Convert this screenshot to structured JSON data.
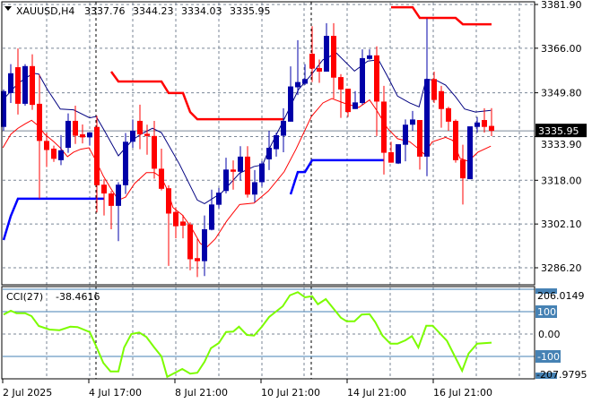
{
  "header": {
    "dropdown_icon": "triangle-down-icon",
    "symbol": "XAUUSD,H4",
    "open": "3337.76",
    "high": "3344.23",
    "low": "3334.03",
    "close": "3335.95"
  },
  "price_axis": {
    "labels": [
      "3381.90",
      "3366.00",
      "3349.80",
      "3333.90",
      "3318.00",
      "3302.10",
      "3286.20"
    ],
    "values": [
      3381.9,
      3366.0,
      3349.8,
      3333.9,
      3318.0,
      3302.1,
      3286.2
    ],
    "current_price_label": "3335.95",
    "current_price": 3335.95
  },
  "time_axis": {
    "labels": [
      "2 Jul 2025",
      "4 Jul 17:00",
      "8 Jul 21:00",
      "10 Jul 21:00",
      "14 Jul 21:00",
      "16 Jul 21:00"
    ],
    "label_candle_index": [
      0,
      12,
      24,
      36,
      48,
      60
    ]
  },
  "cci": {
    "title": "CCI(27)",
    "value": "-38.4616",
    "axis_max_label": "206.0149",
    "axis_min_label": "-207.9795",
    "level_labels": [
      "100",
      "0.00",
      "-100"
    ],
    "levels": [
      100,
      0,
      -100
    ],
    "points": [
      [
        0,
        87
      ],
      [
        1,
        104
      ],
      [
        1.8,
        93
      ],
      [
        3,
        93
      ],
      [
        3.9,
        80
      ],
      [
        4.9,
        36
      ],
      [
        6.4,
        20
      ],
      [
        7.8,
        17
      ],
      [
        9.3,
        33
      ],
      [
        10.3,
        31
      ],
      [
        12,
        9
      ],
      [
        12.8,
        -47
      ],
      [
        13.9,
        -129
      ],
      [
        14.9,
        -167
      ],
      [
        16,
        -167
      ],
      [
        16.8,
        -60
      ],
      [
        17.8,
        0
      ],
      [
        18.9,
        7
      ],
      [
        19.9,
        -13
      ],
      [
        21,
        -60
      ],
      [
        22,
        -100
      ],
      [
        22.8,
        -191
      ],
      [
        24.9,
        -156
      ],
      [
        26,
        -177
      ],
      [
        27,
        -173
      ],
      [
        28,
        -124
      ],
      [
        28.9,
        -63
      ],
      [
        30,
        -40
      ],
      [
        31,
        9
      ],
      [
        32,
        11
      ],
      [
        32.8,
        33
      ],
      [
        33.9,
        -4
      ],
      [
        34.9,
        -7
      ],
      [
        36,
        33
      ],
      [
        37,
        76
      ],
      [
        38.9,
        124
      ],
      [
        39.9,
        173
      ],
      [
        41,
        187
      ],
      [
        42,
        164
      ],
      [
        43,
        169
      ],
      [
        43.8,
        133
      ],
      [
        44.9,
        156
      ],
      [
        47,
        73
      ],
      [
        47.8,
        57
      ],
      [
        48.9,
        57
      ],
      [
        49.9,
        87
      ],
      [
        51,
        89
      ],
      [
        51.8,
        53
      ],
      [
        52.8,
        -7
      ],
      [
        53.9,
        -43
      ],
      [
        54.9,
        -43
      ],
      [
        56,
        -28
      ],
      [
        56.9,
        -9
      ],
      [
        57.8,
        -60
      ],
      [
        58.9,
        37
      ],
      [
        59.8,
        37
      ],
      [
        61.8,
        -31
      ],
      [
        63.9,
        -164
      ],
      [
        64.8,
        -87
      ],
      [
        66,
        -43
      ],
      [
        68,
        -38.46
      ]
    ]
  },
  "colors": {
    "bull": "#0000a8",
    "bear": "#ff0000",
    "upper_ma": "#000080",
    "lower_ma": "#ff0000",
    "resistance": "#ff0000",
    "support": "#0000ff",
    "cci_line": "#7cfc00",
    "cci_level": "#4682b4"
  },
  "candles_ohlc": [
    [
      3337.4,
      3351.0,
      3336.0,
      3350.4
    ],
    [
      3349.7,
      3360.2,
      3346.1,
      3356.9
    ],
    [
      3359.1,
      3365.9,
      3341.9,
      3345.8
    ],
    [
      3345.8,
      3360.2,
      3345.1,
      3359.5
    ],
    [
      3359.5,
      3363.8,
      3343.6,
      3345.4
    ],
    [
      3345.8,
      3356.4,
      3311.4,
      3332.3
    ],
    [
      3332.3,
      3335.3,
      3322.8,
      3329.0
    ],
    [
      3329.5,
      3330.6,
      3324.7,
      3325.8
    ],
    [
      3325.3,
      3334.4,
      3323.5,
      3328.9
    ],
    [
      3329.8,
      3342.3,
      3328.0,
      3339.6
    ],
    [
      3339.6,
      3345.1,
      3331.2,
      3334.2
    ],
    [
      3334.7,
      3338.3,
      3331.4,
      3333.6
    ],
    [
      3333.6,
      3335.4,
      3330.6,
      3335.4
    ],
    [
      3337.4,
      3341.4,
      3306.3,
      3316.2
    ],
    [
      3316.4,
      3318.4,
      3305.2,
      3313.2
    ],
    [
      3313.2,
      3314.1,
      3300.2,
      3308.7
    ],
    [
      3308.7,
      3317.3,
      3295.9,
      3316.4
    ],
    [
      3316.2,
      3335.2,
      3313.0,
      3332.0
    ],
    [
      3332.0,
      3340.1,
      3329.8,
      3336.0
    ],
    [
      3339.6,
      3345.5,
      3329.3,
      3334.7
    ],
    [
      3334.9,
      3338.2,
      3327.3,
      3334.1
    ],
    [
      3334.1,
      3339.6,
      3318.6,
      3322.2
    ],
    [
      3322.2,
      3329.5,
      3314.3,
      3314.9
    ],
    [
      3315.1,
      3316.2,
      3286.9,
      3305.9
    ],
    [
      3306.5,
      3308.1,
      3296.9,
      3301.3
    ],
    [
      3303.0,
      3305.4,
      3296.9,
      3301.5
    ],
    [
      3301.9,
      3302.7,
      3285.3,
      3289.3
    ],
    [
      3289.7,
      3296.7,
      3282.8,
      3288.6
    ],
    [
      3288.6,
      3305.2,
      3283.2,
      3300.2
    ],
    [
      3300.0,
      3314.6,
      3299.8,
      3309.2
    ],
    [
      3309.1,
      3315.2,
      3307.8,
      3313.5
    ],
    [
      3314.1,
      3326.2,
      3313.2,
      3321.9
    ],
    [
      3321.9,
      3325.2,
      3314.6,
      3321.1
    ],
    [
      3321.1,
      3330.4,
      3317.9,
      3326.6
    ],
    [
      3326.6,
      3330.4,
      3311.7,
      3312.8
    ],
    [
      3312.8,
      3321.7,
      3310.0,
      3317.3
    ],
    [
      3317.3,
      3325.0,
      3315.7,
      3324.1
    ],
    [
      3325.6,
      3336.0,
      3321.7,
      3329.8
    ],
    [
      3329.3,
      3335.3,
      3326.6,
      3334.4
    ],
    [
      3334.2,
      3344.2,
      3328.2,
      3339.6
    ],
    [
      3339.3,
      3359.4,
      3339.3,
      3352.1
    ],
    [
      3351.8,
      3368.9,
      3349.0,
      3353.7
    ],
    [
      3353.1,
      3360.2,
      3352.6,
      3354.8
    ],
    [
      3364.0,
      3374.0,
      3353.7,
      3358.6
    ],
    [
      3358.8,
      3361.9,
      3353.4,
      3357.5
    ],
    [
      3357.5,
      3375.1,
      3357.5,
      3370.5
    ],
    [
      3370.5,
      3375.1,
      3347.7,
      3355.3
    ],
    [
      3355.5,
      3356.6,
      3340.7,
      3351.0
    ],
    [
      3351.3,
      3351.3,
      3341.0,
      3342.8
    ],
    [
      3343.9,
      3350.4,
      3343.9,
      3346.3
    ],
    [
      3346.1,
      3365.6,
      3345.5,
      3362.4
    ],
    [
      3362.1,
      3365.6,
      3361.8,
      3363.4
    ],
    [
      3363.4,
      3366.7,
      3334.1,
      3346.6
    ],
    [
      3346.6,
      3352.3,
      3320.1,
      3328.0
    ],
    [
      3328.2,
      3332.0,
      3324.4,
      3324.4
    ],
    [
      3324.1,
      3331.1,
      3323.9,
      3331.1
    ],
    [
      3330.9,
      3340.1,
      3324.9,
      3338.2
    ],
    [
      3338.2,
      3343.2,
      3336.0,
      3340.1
    ],
    [
      3339.9,
      3339.9,
      3321.9,
      3326.6
    ],
    [
      3326.6,
      3376.8,
      3319.5,
      3354.8
    ],
    [
      3354.8,
      3357.5,
      3346.1,
      3347.2
    ],
    [
      3350.4,
      3352.3,
      3337.1,
      3343.9
    ],
    [
      3344.2,
      3344.7,
      3336.0,
      3339.3
    ],
    [
      3339.6,
      3340.1,
      3324.4,
      3325.3
    ],
    [
      3325.5,
      3330.9,
      3309.2,
      3318.7
    ],
    [
      3318.4,
      3337.6,
      3318.4,
      3337.6
    ],
    [
      3337.4,
      3341.0,
      3335.3,
      3339.0
    ],
    [
      3339.9,
      3344.2,
      3335.3,
      3337.4
    ],
    [
      3337.76,
      3344.23,
      3334.03,
      3335.95
    ]
  ],
  "upper_ma": [
    [
      -0.1,
      3347.2
    ],
    [
      2,
      3353.2
    ],
    [
      4.1,
      3356.9
    ],
    [
      4.9,
      3356.6
    ],
    [
      6.1,
      3351.0
    ],
    [
      7.9,
      3343.9
    ],
    [
      9.75,
      3343.6
    ],
    [
      12,
      3340.7
    ],
    [
      12.9,
      3341.2
    ],
    [
      14.1,
      3335.8
    ],
    [
      16,
      3326.9
    ],
    [
      17.9,
      3332.5
    ],
    [
      19.1,
      3334.7
    ],
    [
      20.75,
      3336.9
    ],
    [
      22,
      3335.3
    ],
    [
      24.5,
      3323.9
    ],
    [
      27,
      3310.8
    ],
    [
      28,
      3309.5
    ],
    [
      30.4,
      3313.5
    ],
    [
      32.9,
      3320.6
    ],
    [
      34.9,
      3323.0
    ],
    [
      36.1,
      3323.6
    ],
    [
      37,
      3329.3
    ],
    [
      39.5,
      3342.3
    ],
    [
      41.1,
      3351.0
    ],
    [
      42.9,
      3356.4
    ],
    [
      44.5,
      3361.8
    ],
    [
      46.4,
      3364.2
    ],
    [
      48.9,
      3357.7
    ],
    [
      50.75,
      3361.3
    ],
    [
      52.25,
      3361.8
    ],
    [
      53.6,
      3355.3
    ],
    [
      54.9,
      3348.6
    ],
    [
      56.6,
      3346.1
    ],
    [
      57.9,
      3344.7
    ],
    [
      58.9,
      3354.8
    ],
    [
      60.4,
      3354.2
    ],
    [
      61.6,
      3352.6
    ],
    [
      63,
      3348.3
    ],
    [
      64.25,
      3343.9
    ],
    [
      65.75,
      3342.8
    ],
    [
      67.9,
      3343.4
    ]
  ],
  "lower_ma": [
    [
      -0.1,
      3329.8
    ],
    [
      1,
      3334.7
    ],
    [
      2,
      3336.9
    ],
    [
      3,
      3338.5
    ],
    [
      3.9,
      3339.8
    ],
    [
      4.75,
      3338.0
    ],
    [
      5.75,
      3334.7
    ],
    [
      7,
      3332.0
    ],
    [
      7.9,
      3329.8
    ],
    [
      8.9,
      3326.6
    ],
    [
      9.75,
      3328.2
    ],
    [
      10.75,
      3329.3
    ],
    [
      11.9,
      3329.8
    ],
    [
      12.9,
      3325.0
    ],
    [
      13.9,
      3319.5
    ],
    [
      14.9,
      3315.2
    ],
    [
      16,
      3310.8
    ],
    [
      17,
      3311.9
    ],
    [
      18.25,
      3316.8
    ],
    [
      19.9,
      3320.8
    ],
    [
      21,
      3320.8
    ],
    [
      22,
      3319.0
    ],
    [
      22.9,
      3314.1
    ],
    [
      23.6,
      3308.1
    ],
    [
      24.9,
      3305.4
    ],
    [
      26.1,
      3301.1
    ],
    [
      27.4,
      3295.1
    ],
    [
      28.25,
      3293.5
    ],
    [
      29.5,
      3296.7
    ],
    [
      31.1,
      3303.2
    ],
    [
      32.9,
      3309.2
    ],
    [
      34.9,
      3309.7
    ],
    [
      36.9,
      3314.1
    ],
    [
      39.1,
      3321.1
    ],
    [
      40.75,
      3329.3
    ],
    [
      42.9,
      3341.2
    ],
    [
      44.5,
      3346.1
    ],
    [
      45.75,
      3347.7
    ],
    [
      47.4,
      3346.1
    ],
    [
      49.5,
      3344.5
    ],
    [
      51,
      3347.2
    ],
    [
      52,
      3343.4
    ],
    [
      53.5,
      3336.9
    ],
    [
      54.9,
      3333.1
    ],
    [
      56.6,
      3332.0
    ],
    [
      57.9,
      3329.3
    ],
    [
      58.6,
      3327.6
    ],
    [
      59.75,
      3332.0
    ],
    [
      61.6,
      3333.6
    ],
    [
      62.6,
      3332.5
    ],
    [
      63.6,
      3326.0
    ],
    [
      64.75,
      3324.9
    ],
    [
      66.1,
      3328.2
    ],
    [
      67.9,
      3330.4
    ]
  ],
  "resistance_steps": [
    [
      [
        15,
        3357.5
      ],
      [
        16,
        3353.9
      ],
      [
        22,
        3353.9
      ],
      [
        23,
        3349.7
      ],
      [
        25,
        3349.7
      ],
      [
        26,
        3342.8
      ],
      [
        27,
        3340.2
      ],
      [
        39,
        3340.2
      ]
    ],
    [
      [
        54,
        3380.9
      ],
      [
        57,
        3380.9
      ],
      [
        58,
        3377.0
      ],
      [
        63,
        3377.0
      ],
      [
        64,
        3374.7
      ],
      [
        68,
        3374.7
      ]
    ]
  ],
  "support_steps": [
    [
      [
        0,
        3296.3
      ],
      [
        1,
        3305.0
      ],
      [
        2,
        3311.3
      ],
      [
        14,
        3311.3
      ]
    ],
    [
      [
        40,
        3312.9
      ],
      [
        41,
        3321.0
      ],
      [
        42,
        3321.0
      ],
      [
        43,
        3325.3
      ],
      [
        53,
        3325.3
      ]
    ]
  ]
}
